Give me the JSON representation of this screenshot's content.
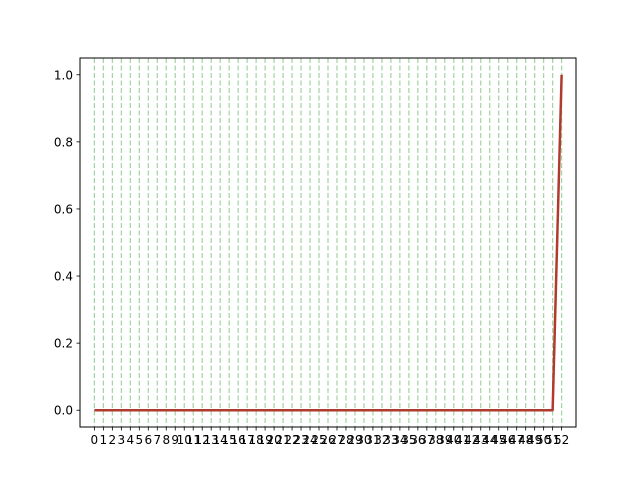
{
  "chart_data": {
    "type": "line",
    "x": [
      0,
      1,
      2,
      3,
      4,
      5,
      6,
      7,
      8,
      9,
      10,
      11,
      12,
      13,
      14,
      15,
      16,
      17,
      18,
      19,
      20,
      21,
      22,
      23,
      24,
      25,
      26,
      27,
      28,
      29,
      30,
      31,
      32,
      33,
      34,
      35,
      36,
      37,
      38,
      39,
      40,
      41,
      42,
      43,
      44,
      45,
      46,
      47,
      48,
      49,
      50,
      51,
      52
    ],
    "x_tick_labels": [
      "0",
      "1",
      "2",
      "3",
      "4",
      "5",
      "6",
      "7",
      "8",
      "9",
      "10",
      "11",
      "12",
      "13",
      "14",
      "15",
      "16",
      "17",
      "18",
      "19",
      "20",
      "21",
      "22",
      "23",
      "24",
      "25",
      "26",
      "27",
      "28",
      "29",
      "30",
      "31",
      "32",
      "33",
      "34",
      "35",
      "36",
      "37",
      "38",
      "39",
      "40",
      "41",
      "42",
      "43",
      "44",
      "45",
      "46",
      "47",
      "48",
      "49",
      "50",
      "51",
      "52"
    ],
    "series": [
      {
        "values": [
          0,
          0,
          0,
          0,
          0,
          0,
          0,
          0,
          0,
          0,
          0,
          0,
          0,
          0,
          0,
          0,
          0,
          0,
          0,
          0,
          0,
          0,
          0,
          0,
          0,
          0,
          0,
          0,
          0,
          0,
          0,
          0,
          0,
          0,
          0,
          0,
          0,
          0,
          0,
          0,
          0,
          0,
          0,
          0,
          0,
          0,
          0,
          0,
          0,
          0,
          0,
          0,
          1
        ],
        "color": "#b03a2e"
      }
    ],
    "vertical_gridlines_at": [
      0,
      1,
      2,
      3,
      4,
      5,
      6,
      7,
      8,
      9,
      10,
      11,
      12,
      13,
      14,
      15,
      16,
      17,
      18,
      19,
      20,
      21,
      22,
      23,
      24,
      25,
      26,
      27,
      28,
      29,
      30,
      31,
      32,
      33,
      34,
      35,
      36,
      37,
      38,
      39,
      40,
      41,
      42,
      43,
      44,
      45,
      46,
      47,
      48,
      49,
      50,
      51,
      52
    ],
    "gridline_color": "#2ca02c",
    "gridline_style": "dashed",
    "y_ticks": [
      0.0,
      0.2,
      0.4,
      0.6,
      0.8,
      1.0
    ],
    "y_tick_labels": [
      "0.0",
      "0.2",
      "0.4",
      "0.6",
      "0.8",
      "1.0"
    ],
    "xlim": [
      -1.6,
      53.6
    ],
    "ylim": [
      -0.05,
      1.05
    ],
    "title": "",
    "xlabel": "",
    "ylabel": ""
  }
}
